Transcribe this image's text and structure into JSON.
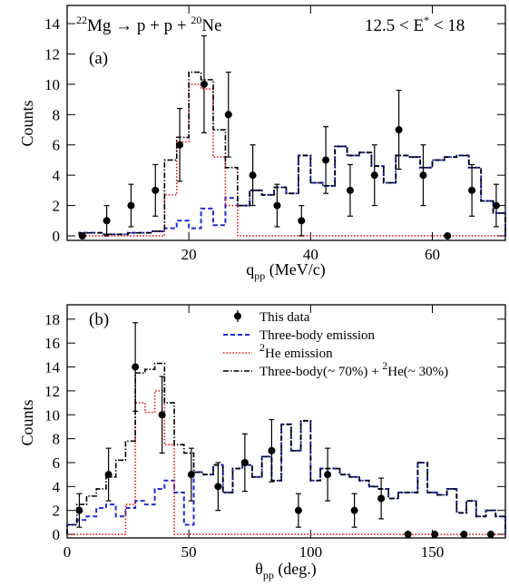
{
  "chart_data": [
    {
      "type": "line",
      "panel_label": "(a)",
      "reaction": {
        "z": "22",
        "a": "Mg",
        "b": " → p + p + ",
        "z2": "20",
        "c": "Ne"
      },
      "energy_range": {
        "a": "12.5 < E",
        "star": "*",
        "b": " < 18"
      },
      "xlabel": {
        "base": "q",
        "sub": "pp",
        "unit": " (MeV/c)"
      },
      "ylabel": "Counts",
      "xlim": [
        0,
        72
      ],
      "ylim": [
        -0.3,
        15.2
      ],
      "xticks": [
        20,
        40,
        60
      ],
      "yticks": [
        0,
        2,
        4,
        6,
        8,
        10,
        12,
        14
      ],
      "bin_edges": [
        2,
        4,
        6,
        8,
        10,
        12,
        14,
        16,
        18,
        20,
        22,
        24,
        26,
        28,
        30,
        32,
        34,
        36,
        38,
        40,
        42,
        44,
        46,
        48,
        50,
        52,
        54,
        56,
        58,
        60,
        62,
        64,
        66,
        68,
        70,
        72
      ],
      "series": [
        {
          "style": "three_body",
          "color": "#1f2ad6",
          "values": [
            0.2,
            0.2,
            0.1,
            0.1,
            0.2,
            0.2,
            0.3,
            0.5,
            1.0,
            0.5,
            1.8,
            0.7,
            2.5,
            2.0,
            3.0,
            2.7,
            3.2,
            2.8,
            5.3,
            3.5,
            3.3,
            5.9,
            5.3,
            5.5,
            4.6,
            3.5,
            5.3,
            5.2,
            4.5,
            5.0,
            5.2,
            5.3,
            4.5,
            2.3,
            1.5
          ]
        },
        {
          "style": "he2",
          "color": "#e01616",
          "values": [
            0,
            0,
            0,
            0,
            0,
            0,
            0,
            2.7,
            6.2,
            10.0,
            9.7,
            5.2,
            2.0,
            0,
            0,
            0,
            0,
            0,
            0,
            0,
            0,
            0,
            0,
            0,
            0,
            0,
            0,
            0,
            0,
            0,
            0,
            0,
            0,
            0,
            0
          ]
        },
        {
          "style": "mixed",
          "color": "#000000",
          "values": [
            0.2,
            0.2,
            0.1,
            0.1,
            0.2,
            0.2,
            0.3,
            5.0,
            6.5,
            10.8,
            10.3,
            7.0,
            4.5,
            2.0,
            3.0,
            2.7,
            3.2,
            2.8,
            5.3,
            3.5,
            3.3,
            5.9,
            5.3,
            5.5,
            4.6,
            3.5,
            5.3,
            5.2,
            4.5,
            5.0,
            5.2,
            5.3,
            4.5,
            2.3,
            1.5
          ]
        }
      ],
      "data_points": [
        {
          "x": 2.5,
          "y": 0,
          "err": 0
        },
        {
          "x": 6.5,
          "y": 1,
          "err": 1
        },
        {
          "x": 10.5,
          "y": 2,
          "err": 1.4
        },
        {
          "x": 14.5,
          "y": 3,
          "err": 1.7
        },
        {
          "x": 18.5,
          "y": 6,
          "err": 2.4
        },
        {
          "x": 22.5,
          "y": 10,
          "err": 3.2
        },
        {
          "x": 26.5,
          "y": 8,
          "err": 2.8
        },
        {
          "x": 30.5,
          "y": 4,
          "err": 2
        },
        {
          "x": 34.5,
          "y": 2,
          "err": 1.4
        },
        {
          "x": 38.5,
          "y": 1,
          "err": 1
        },
        {
          "x": 42.5,
          "y": 5,
          "err": 2.2
        },
        {
          "x": 46.5,
          "y": 3,
          "err": 1.7
        },
        {
          "x": 50.5,
          "y": 4,
          "err": 2
        },
        {
          "x": 54.5,
          "y": 7,
          "err": 2.6
        },
        {
          "x": 58.5,
          "y": 4,
          "err": 2
        },
        {
          "x": 62.5,
          "y": 0,
          "err": 0
        },
        {
          "x": 66.5,
          "y": 3,
          "err": 1.7
        },
        {
          "x": 70.5,
          "y": 2,
          "err": 1.4
        }
      ]
    },
    {
      "type": "line",
      "panel_label": "(b)",
      "xlabel": {
        "base": "θ",
        "sub": "pp",
        "unit": " (deg.)"
      },
      "ylabel": "Counts",
      "xlim": [
        0,
        180
      ],
      "ylim": [
        -0.3,
        19.2
      ],
      "xticks": [
        0,
        50,
        100,
        150
      ],
      "yticks": [
        0,
        2,
        4,
        6,
        8,
        10,
        12,
        14,
        16,
        18
      ],
      "bin_edges": [
        0,
        4,
        8,
        12,
        16,
        20,
        24,
        28,
        32,
        36,
        40,
        44,
        48,
        52,
        56,
        60,
        64,
        68,
        72,
        76,
        80,
        84,
        88,
        92,
        96,
        100,
        104,
        108,
        112,
        116,
        120,
        124,
        128,
        132,
        136,
        140,
        144,
        148,
        152,
        156,
        160,
        164,
        168,
        172,
        176,
        180
      ],
      "series": [
        {
          "style": "three_body",
          "color": "#1f2ad6",
          "values": [
            0.8,
            1.2,
            1.5,
            2.2,
            2.5,
            1.5,
            2.2,
            2.8,
            2.5,
            3.8,
            4.5,
            3.5,
            0.8,
            5.2,
            5.0,
            5.8,
            3.5,
            5.5,
            5.8,
            4.8,
            6.5,
            4.5,
            9.2,
            7.0,
            9.5,
            4.5,
            5.5,
            5.5,
            5.0,
            4.8,
            4.5,
            4.0,
            3.8,
            3.0,
            3.5,
            3.5,
            6.0,
            3.5,
            3.3,
            3.8,
            1.8,
            2.8,
            1.5,
            2.0,
            1.5
          ]
        },
        {
          "style": "he2",
          "color": "#e01616",
          "values": [
            0,
            0,
            0,
            0,
            0,
            0,
            2.5,
            11.0,
            10.2,
            12.0,
            7.5,
            0,
            0,
            0,
            0,
            0,
            0,
            0,
            0,
            0,
            0,
            0,
            0,
            0,
            0,
            0,
            0,
            0,
            0,
            0,
            0,
            0,
            0,
            0,
            0,
            0,
            0,
            0,
            0,
            0,
            0,
            0,
            0,
            0,
            0
          ]
        },
        {
          "style": "mixed",
          "color": "#000000",
          "values": [
            0.8,
            2.5,
            3.2,
            3.8,
            4.8,
            6.2,
            7.8,
            13.5,
            13.8,
            14.3,
            11.0,
            7.5,
            6.8,
            5.2,
            5.0,
            5.8,
            3.5,
            5.5,
            5.8,
            4.8,
            6.5,
            4.5,
            9.2,
            7.0,
            9.5,
            4.5,
            5.5,
            5.5,
            5.0,
            4.8,
            4.5,
            4.0,
            3.8,
            3.0,
            3.5,
            3.5,
            6.0,
            3.5,
            3.3,
            3.8,
            1.8,
            2.8,
            1.5,
            2.0,
            1.5
          ]
        }
      ],
      "data_points": [
        {
          "x": 5,
          "y": 2,
          "err": 1.4
        },
        {
          "x": 17,
          "y": 5,
          "err": 2.2
        },
        {
          "x": 28,
          "y": 14,
          "err": 3.7
        },
        {
          "x": 39,
          "y": 10,
          "err": 3.2
        },
        {
          "x": 51,
          "y": 5,
          "err": 2.2
        },
        {
          "x": 62,
          "y": 4,
          "err": 2
        },
        {
          "x": 73,
          "y": 6,
          "err": 2.4
        },
        {
          "x": 84,
          "y": 7,
          "err": 2.6
        },
        {
          "x": 95,
          "y": 2,
          "err": 1.4
        },
        {
          "x": 107,
          "y": 5,
          "err": 2.2
        },
        {
          "x": 118,
          "y": 2,
          "err": 1.4
        },
        {
          "x": 129,
          "y": 3,
          "err": 1.7
        },
        {
          "x": 140,
          "y": 0,
          "err": 0
        },
        {
          "x": 151,
          "y": 0,
          "err": 0
        },
        {
          "x": 163,
          "y": 0,
          "err": 0
        },
        {
          "x": 174,
          "y": 0,
          "err": 0
        }
      ],
      "legend": [
        {
          "key": "data",
          "label": "This data"
        },
        {
          "key": "three_body",
          "label": "Three-body emission"
        },
        {
          "key": "he2",
          "label_parts": {
            "sup": "2",
            "base": "He emission"
          }
        },
        {
          "key": "mixed",
          "label_parts": {
            "a": "Three-body(~ 70%) + ",
            "sup": "2",
            "b": "He(~ 30%)"
          }
        }
      ]
    }
  ]
}
